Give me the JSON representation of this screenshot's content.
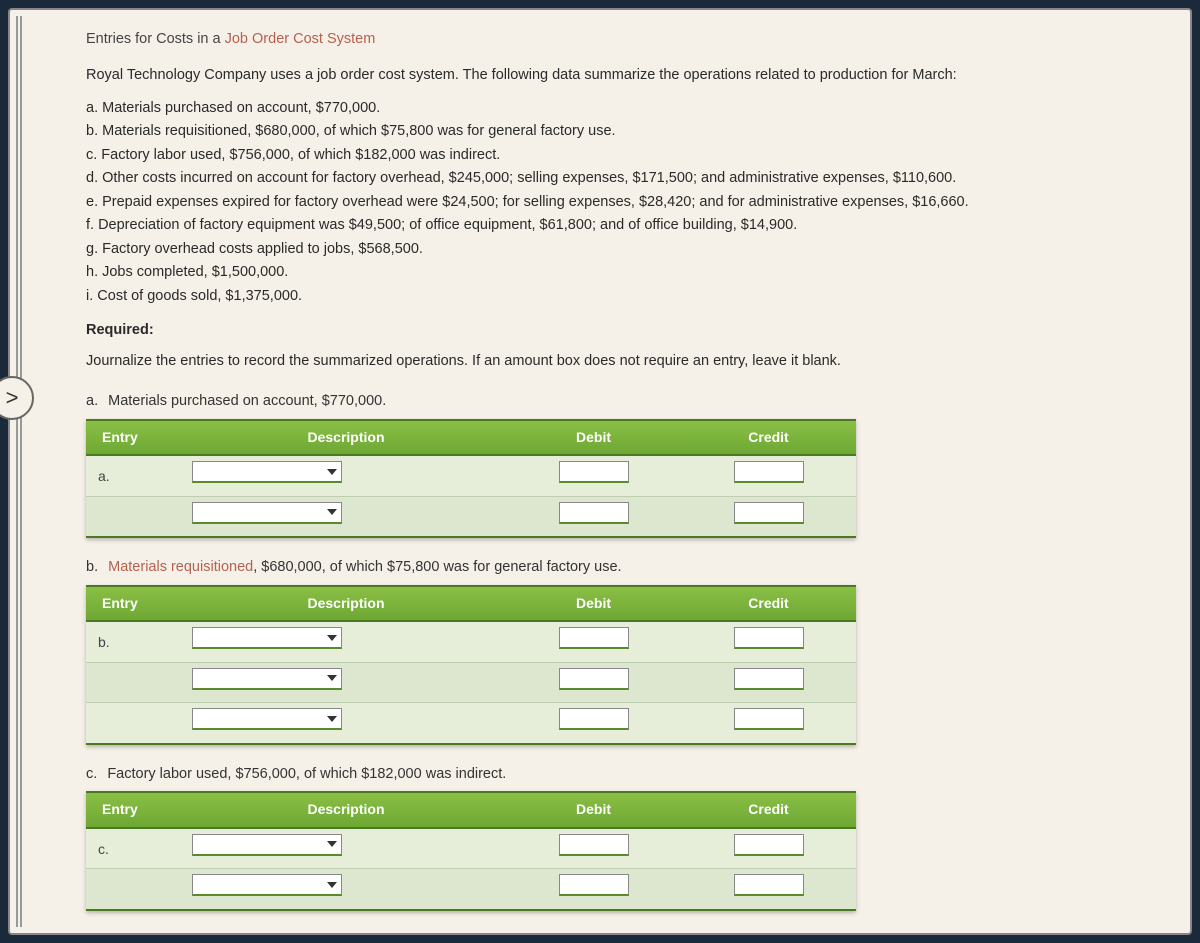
{
  "colors": {
    "page_bg": "#f5f0e8",
    "body_bg": "#1a2a3a",
    "link": "#b7614f",
    "header_grad_top": "#8abf45",
    "header_grad_bottom": "#6da834",
    "header_border": "#4a7a20",
    "row_odd": "#dde6cf",
    "row_even": "#e6edd9",
    "underline": "#5a8a2a"
  },
  "title": {
    "prefix": "Entries for Costs in a ",
    "link": "Job Order Cost System"
  },
  "intro": "Royal Technology Company uses a job order cost system. The following data summarize the operations related to production for March:",
  "items": {
    "a": "a. Materials purchased on account, $770,000.",
    "b": "b. Materials requisitioned, $680,000, of which $75,800 was for general factory use.",
    "c": "c. Factory labor used, $756,000, of which $182,000 was indirect.",
    "d": "d. Other costs incurred on account for factory overhead, $245,000; selling expenses, $171,500; and administrative expenses, $110,600.",
    "e": "e. Prepaid expenses expired for factory overhead were $24,500; for selling expenses, $28,420; and for administrative expenses, $16,660.",
    "f": "f. Depreciation of factory equipment was $49,500; of office equipment, $61,800; and of office building, $14,900.",
    "g": "g. Factory overhead costs applied to jobs, $568,500.",
    "h": "h. Jobs completed, $1,500,000.",
    "i": "i. Cost of goods sold, $1,375,000."
  },
  "required_label": "Required:",
  "instruction": "Journalize the entries to record the summarized operations. If an amount box does not require an entry, leave it blank.",
  "nav_symbol": ">",
  "headers": {
    "entry": "Entry",
    "description": "Description",
    "debit": "Debit",
    "credit": "Credit"
  },
  "sections": {
    "a": {
      "lbl": "a.",
      "text": "Materials purchased on account, $770,000.",
      "entry_label": "a.",
      "rows": 2
    },
    "b": {
      "lbl": "b.",
      "link": "Materials requisitioned",
      "rest": ", $680,000, of which $75,800 was for general factory use.",
      "entry_label": "b.",
      "rows": 3
    },
    "c": {
      "lbl": "c.",
      "text": "Factory labor used, $756,000, of which $182,000 was indirect.",
      "entry_label": "c.",
      "rows": 2
    }
  }
}
